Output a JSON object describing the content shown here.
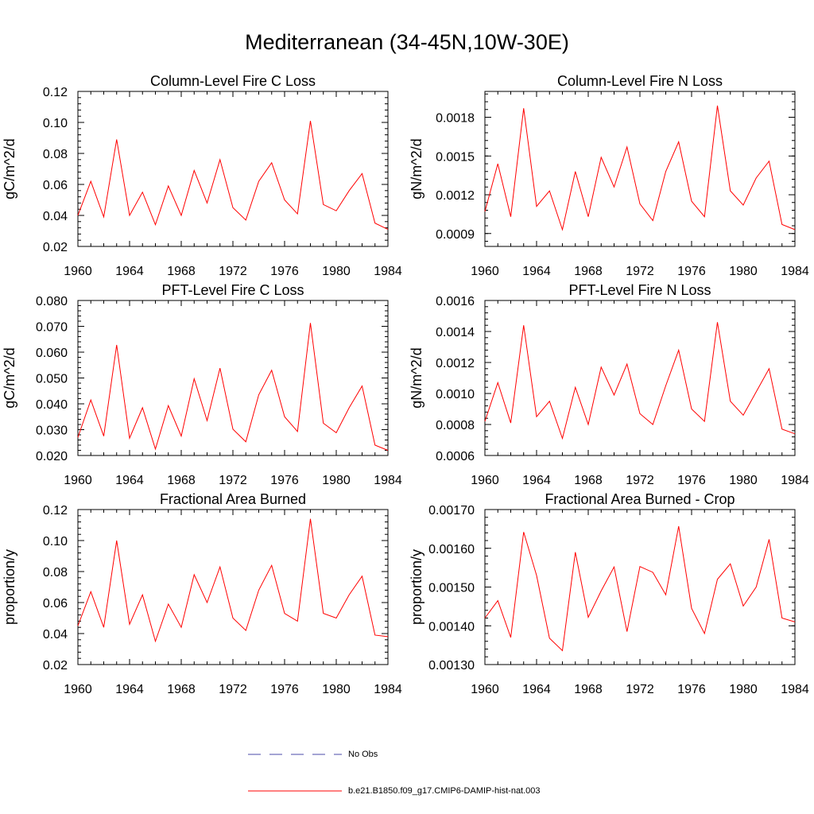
{
  "figure_title": "Mediterranean (34-45N,10W-30E)",
  "legend": {
    "obs_label": "No Obs",
    "obs_color": "#4a4aa8",
    "model_label": "b.e21.B1850.f09_g17.CMIP6-DAMIP-hist-nat.003",
    "model_color": "#ff0000"
  },
  "chart_data": [
    {
      "type": "line",
      "title": "Column-Level Fire C Loss",
      "ylabel": "gC/m^2/d",
      "xlim": [
        1960,
        1984
      ],
      "ylim": [
        0.02,
        0.12
      ],
      "yticks": [
        "0.02",
        "0.04",
        "0.06",
        "0.08",
        "0.10",
        "0.12"
      ],
      "xticks": [
        "1960",
        "1964",
        "1968",
        "1972",
        "1976",
        "1980",
        "1984"
      ],
      "x": [
        1960,
        1961,
        1962,
        1963,
        1964,
        1965,
        1966,
        1967,
        1968,
        1969,
        1970,
        1971,
        1972,
        1973,
        1974,
        1975,
        1976,
        1977,
        1978,
        1979,
        1980,
        1981,
        1982,
        1983,
        1984
      ],
      "series": [
        {
          "values": [
            0.04,
            0.062,
            0.039,
            0.089,
            0.04,
            0.055,
            0.034,
            0.059,
            0.04,
            0.069,
            0.048,
            0.076,
            0.045,
            0.037,
            0.062,
            0.074,
            0.05,
            0.041,
            0.101,
            0.047,
            0.043,
            0.056,
            0.067,
            0.035,
            0.031
          ]
        }
      ]
    },
    {
      "type": "line",
      "title": "Column-Level Fire N Loss",
      "ylabel": "gN/m^2/d",
      "xlim": [
        1960,
        1984
      ],
      "ylim": [
        0.0008,
        0.002
      ],
      "yticks": [
        "0.0009",
        "0.0012",
        "0.0015",
        "0.0018"
      ],
      "ytick_values": [
        0.0009,
        0.0012,
        0.0015,
        0.0018
      ],
      "xticks": [
        "1960",
        "1964",
        "1968",
        "1972",
        "1976",
        "1980",
        "1984"
      ],
      "x": [
        1960,
        1961,
        1962,
        1963,
        1964,
        1965,
        1966,
        1967,
        1968,
        1969,
        1970,
        1971,
        1972,
        1973,
        1974,
        1975,
        1976,
        1977,
        1978,
        1979,
        1980,
        1981,
        1982,
        1983,
        1984
      ],
      "series": [
        {
          "values": [
            0.00107,
            0.00144,
            0.00103,
            0.00187,
            0.00111,
            0.00123,
            0.00093,
            0.00138,
            0.00103,
            0.00149,
            0.00126,
            0.00157,
            0.00113,
            0.001,
            0.00138,
            0.00161,
            0.00115,
            0.00103,
            0.00189,
            0.00123,
            0.00112,
            0.00133,
            0.00146,
            0.00097,
            0.00093
          ]
        }
      ]
    },
    {
      "type": "line",
      "title": "PFT-Level Fire C Loss",
      "ylabel": "gC/m^2/d",
      "xlim": [
        1960,
        1984
      ],
      "ylim": [
        0.02,
        0.08
      ],
      "yticks": [
        "0.020",
        "0.030",
        "0.040",
        "0.050",
        "0.060",
        "0.070",
        "0.080"
      ],
      "xticks": [
        "1960",
        "1964",
        "1968",
        "1972",
        "1976",
        "1980",
        "1984"
      ],
      "x": [
        1960,
        1961,
        1962,
        1963,
        1964,
        1965,
        1966,
        1967,
        1968,
        1969,
        1970,
        1971,
        1972,
        1973,
        1974,
        1975,
        1976,
        1977,
        1978,
        1979,
        1980,
        1981,
        1982,
        1983,
        1984
      ],
      "series": [
        {
          "values": [
            0.027,
            0.0415,
            0.0275,
            0.0628,
            0.0267,
            0.0385,
            0.0225,
            0.0393,
            0.0275,
            0.0497,
            0.0335,
            0.0538,
            0.0302,
            0.0253,
            0.0435,
            0.053,
            0.035,
            0.0293,
            0.0713,
            0.0325,
            0.0288,
            0.0385,
            0.0469,
            0.024,
            0.022
          ]
        }
      ]
    },
    {
      "type": "line",
      "title": "PFT-Level Fire N Loss",
      "ylabel": "gN/m^2/d",
      "xlim": [
        1960,
        1984
      ],
      "ylim": [
        0.0006,
        0.0016
      ],
      "yticks": [
        "0.0006",
        "0.0008",
        "0.0010",
        "0.0012",
        "0.0014",
        "0.0016"
      ],
      "xticks": [
        "1960",
        "1964",
        "1968",
        "1972",
        "1976",
        "1980",
        "1984"
      ],
      "x": [
        1960,
        1961,
        1962,
        1963,
        1964,
        1965,
        1966,
        1967,
        1968,
        1969,
        1970,
        1971,
        1972,
        1973,
        1974,
        1975,
        1976,
        1977,
        1978,
        1979,
        1980,
        1981,
        1982,
        1983,
        1984
      ],
      "series": [
        {
          "values": [
            0.00082,
            0.00107,
            0.00081,
            0.00144,
            0.00085,
            0.00095,
            0.00071,
            0.00104,
            0.0008,
            0.00117,
            0.00099,
            0.00119,
            0.00087,
            0.0008,
            0.00105,
            0.00128,
            0.0009,
            0.00082,
            0.00146,
            0.00095,
            0.00086,
            0.00101,
            0.00116,
            0.00077,
            0.00074
          ]
        }
      ]
    },
    {
      "type": "line",
      "title": "Fractional Area Burned",
      "ylabel": "proportion/y",
      "xlim": [
        1960,
        1984
      ],
      "ylim": [
        0.02,
        0.12
      ],
      "yticks": [
        "0.02",
        "0.04",
        "0.06",
        "0.08",
        "0.10",
        "0.12"
      ],
      "xticks": [
        "1960",
        "1964",
        "1968",
        "1972",
        "1976",
        "1980",
        "1984"
      ],
      "x": [
        1960,
        1961,
        1962,
        1963,
        1964,
        1965,
        1966,
        1967,
        1968,
        1969,
        1970,
        1971,
        1972,
        1973,
        1974,
        1975,
        1976,
        1977,
        1978,
        1979,
        1980,
        1981,
        1982,
        1983,
        1984
      ],
      "series": [
        {
          "values": [
            0.045,
            0.067,
            0.044,
            0.1,
            0.046,
            0.065,
            0.035,
            0.059,
            0.044,
            0.078,
            0.06,
            0.083,
            0.05,
            0.042,
            0.068,
            0.084,
            0.053,
            0.048,
            0.114,
            0.053,
            0.05,
            0.065,
            0.077,
            0.039,
            0.038
          ]
        }
      ]
    },
    {
      "type": "line",
      "title": "Fractional Area Burned - Crop",
      "ylabel": "proportion/y",
      "xlim": [
        1960,
        1984
      ],
      "ylim": [
        0.0013,
        0.0017
      ],
      "yticks": [
        "0.00130",
        "0.00140",
        "0.00150",
        "0.00160",
        "0.00170"
      ],
      "xticks": [
        "1960",
        "1964",
        "1968",
        "1972",
        "1976",
        "1980",
        "1984"
      ],
      "x": [
        1960,
        1961,
        1962,
        1963,
        1964,
        1965,
        1966,
        1967,
        1968,
        1969,
        1970,
        1971,
        1972,
        1973,
        1974,
        1975,
        1976,
        1977,
        1978,
        1979,
        1980,
        1981,
        1982,
        1983,
        1984
      ],
      "series": [
        {
          "values": [
            0.00142,
            0.001465,
            0.00137,
            0.001642,
            0.00153,
            0.001368,
            0.001336,
            0.00159,
            0.001422,
            0.00149,
            0.001552,
            0.001385,
            0.001553,
            0.001538,
            0.00148,
            0.001657,
            0.001445,
            0.00138,
            0.00152,
            0.00156,
            0.001451,
            0.0015,
            0.001623,
            0.00142,
            0.00141
          ]
        }
      ]
    }
  ]
}
